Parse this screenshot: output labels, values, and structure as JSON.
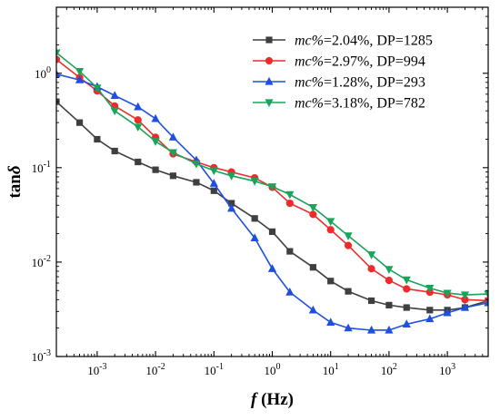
{
  "chart_data": {
    "type": "line",
    "xlabel": {
      "italic": "f",
      "rest": " (Hz)"
    },
    "ylabel": {
      "bold": "tan",
      "italic": "δ"
    },
    "xscale": "log",
    "yscale": "log",
    "xlim": [
      0.0002,
      5000
    ],
    "ylim": [
      0.001,
      5
    ],
    "legend_position": "top-right",
    "x_ticks": [
      {
        "value": 0.001,
        "base": "10",
        "exp": "-3"
      },
      {
        "value": 0.01,
        "base": "10",
        "exp": "-2"
      },
      {
        "value": 0.1,
        "base": "10",
        "exp": "-1"
      },
      {
        "value": 1,
        "base": "10",
        "exp": "0"
      },
      {
        "value": 10,
        "base": "10",
        "exp": "1"
      },
      {
        "value": 100,
        "base": "10",
        "exp": "2"
      },
      {
        "value": 1000,
        "base": "10",
        "exp": "3"
      }
    ],
    "y_ticks": [
      {
        "value": 0.001,
        "base": "10",
        "exp": "-3"
      },
      {
        "value": 0.01,
        "base": "10",
        "exp": "-2"
      },
      {
        "value": 0.1,
        "base": "10",
        "exp": "-1"
      },
      {
        "value": 1,
        "base": "10",
        "exp": "0"
      }
    ],
    "series": [
      {
        "name": "mc%=2.04%, DP=1285",
        "label_italic": "mc%",
        "label_rest": "=2.04%, DP=1285",
        "color": "#3f3f3f",
        "marker": "square",
        "x": [
          0.0002,
          0.0005,
          0.001,
          0.002,
          0.005,
          0.01,
          0.02,
          0.05,
          0.1,
          0.2,
          0.5,
          1,
          2,
          5,
          10,
          20,
          50,
          100,
          200,
          500,
          1000,
          2000,
          5000
        ],
        "y": [
          0.5,
          0.3,
          0.2,
          0.15,
          0.115,
          0.095,
          0.082,
          0.07,
          0.057,
          0.042,
          0.029,
          0.021,
          0.013,
          0.0088,
          0.0063,
          0.0049,
          0.0039,
          0.0035,
          0.0033,
          0.0031,
          0.0031,
          0.0033,
          0.0039
        ]
      },
      {
        "name": "mc%=2.97%, DP=994",
        "label_italic": "mc%",
        "label_rest": "=2.97%, DP=994",
        "color": "#ee2b2b",
        "marker": "circle",
        "x": [
          0.0002,
          0.0005,
          0.001,
          0.002,
          0.005,
          0.01,
          0.02,
          0.05,
          0.1,
          0.2,
          0.5,
          1,
          2,
          5,
          10,
          20,
          50,
          100,
          200,
          500,
          1000,
          2000,
          5000
        ],
        "y": [
          1.4,
          0.9,
          0.65,
          0.45,
          0.32,
          0.21,
          0.14,
          0.115,
          0.1,
          0.09,
          0.078,
          0.062,
          0.042,
          0.032,
          0.022,
          0.015,
          0.0085,
          0.0064,
          0.0052,
          0.0048,
          0.0045,
          0.004,
          0.0039
        ]
      },
      {
        "name": "mc%=1.28%, DP=293",
        "label_italic": "mc%",
        "label_rest": "=1.28%, DP=293",
        "color": "#1f4fe0",
        "marker": "triangle-up",
        "x": [
          0.0002,
          0.0005,
          0.001,
          0.002,
          0.005,
          0.01,
          0.02,
          0.05,
          0.1,
          0.2,
          0.5,
          1,
          2,
          5,
          10,
          20,
          50,
          100,
          200,
          500,
          1000,
          2000,
          5000
        ],
        "y": [
          0.98,
          0.85,
          0.72,
          0.58,
          0.44,
          0.33,
          0.21,
          0.12,
          0.068,
          0.037,
          0.018,
          0.0085,
          0.0048,
          0.0031,
          0.0023,
          0.002,
          0.0019,
          0.0019,
          0.0022,
          0.0025,
          0.0029,
          0.0033,
          0.0037
        ]
      },
      {
        "name": "mc%=3.18%, DP=782",
        "label_italic": "mc%",
        "label_rest": "=3.18%, DP=782",
        "color": "#1aa35b",
        "marker": "triangle-down",
        "x": [
          0.0002,
          0.0005,
          0.001,
          0.002,
          0.005,
          0.01,
          0.02,
          0.05,
          0.1,
          0.2,
          0.5,
          1,
          2,
          5,
          10,
          20,
          50,
          100,
          200,
          500,
          1000,
          2000,
          5000
        ],
        "y": [
          1.65,
          1.05,
          0.7,
          0.4,
          0.27,
          0.19,
          0.145,
          0.11,
          0.093,
          0.082,
          0.072,
          0.063,
          0.052,
          0.038,
          0.027,
          0.019,
          0.012,
          0.0084,
          0.0065,
          0.0053,
          0.0047,
          0.0045,
          0.0046
        ]
      }
    ]
  }
}
